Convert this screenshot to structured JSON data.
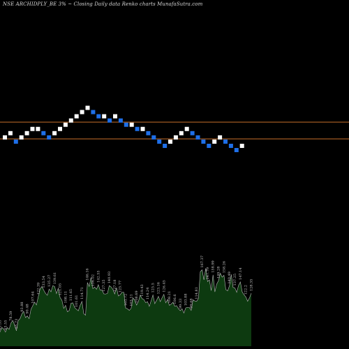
{
  "title": "NSE ARCHIDPLY_BE 3% ~  Closing Daily data  Renko  charts MunafaSutra.com",
  "colors": {
    "background": "#000000",
    "up_brick": "#ffffff",
    "down_brick": "#1e6fe8",
    "level_line": "#c8702a",
    "volume_fill": "#0d3a10",
    "volume_line": "#b8b8b8",
    "volume_label": "#c8c8c8"
  },
  "chart_data": {
    "type": "renko",
    "bricks": {
      "columns": 44,
      "levels": [
        3,
        4,
        2,
        3,
        4,
        5,
        5,
        4,
        3,
        4,
        5,
        6,
        7,
        8,
        9,
        10,
        9,
        8,
        8,
        7,
        8,
        7,
        6,
        6,
        5,
        5,
        4,
        3,
        2,
        1,
        2,
        3,
        4,
        5,
        4,
        3,
        2,
        1,
        2,
        3,
        2,
        1,
        0,
        1
      ],
      "directions": [
        "up",
        "up",
        "down",
        "up",
        "up",
        "up",
        "up",
        "down",
        "down",
        "up",
        "up",
        "up",
        "up",
        "up",
        "up",
        "up",
        "down",
        "down",
        "up",
        "down",
        "up",
        "down",
        "down",
        "up",
        "down",
        "up",
        "down",
        "down",
        "down",
        "down",
        "up",
        "up",
        "up",
        "up",
        "down",
        "down",
        "down",
        "down",
        "up",
        "up",
        "down",
        "down",
        "down",
        "up"
      ]
    },
    "levels": [
      "upper",
      "lower"
    ],
    "volume": {
      "values": [
        63.55,
        71.29,
        68.65,
        63.55,
        70.96,
        68.14,
        78.59,
        82.86,
        75.81,
        65.73,
        82.87,
        85.94,
        93.88,
        98.12,
        87.79,
        90.48,
        85.94,
        101.58,
        107.64,
        113.51,
        108.82,
        122.39,
        135.22,
        139.59,
        133.54,
        128.06,
        124.85,
        135.27,
        130.77,
        140.88,
        139.61,
        127.75,
        136.64,
        121.05,
        116.57,
        103.12,
        108.11,
        97.47,
        99.47,
        111.65,
        112.34,
        104.55,
        101.61,
        99.1,
        108.05,
        114.71,
        94.14,
        91.77,
        146.16,
        139.61,
        154.54,
        136.02,
        138.52,
        134.94,
        142.55,
        133.45,
        133.8,
        127.35,
        126.99,
        128.09,
        140.93,
        138.78,
        134.7,
        127.18,
        137.6,
        123.79,
        125.77,
        129.82,
        129.82,
        103.72,
        102.38,
        99.9,
        103.11,
        120.53,
        116.92,
        108.69,
        114.33,
        125.25,
        119.43,
        117.85,
        112.61,
        114.24,
        106.45,
        115.86,
        125.5,
        110.97,
        116.58,
        123.16,
        114.35,
        120.78,
        126.45,
        112.36,
        117.76,
        108.21,
        110.17,
        113.23,
        106.6,
        107.68,
        102.47,
        99.33,
        102.42,
        95.34,
        103.88,
        104.88,
        104.34,
        99.68,
        117.33,
        115.43,
        114.81,
        119.68,
        164.22,
        167.37,
        150.67,
        169.84,
        147.79,
        150.42,
        132.64,
        158.99,
        130.54,
        143.47,
        149.28,
        161.77,
        155.07,
        158.26,
        134.44,
        132.37,
        140.49,
        159.7,
        138.1,
        137.25,
        129.79,
        141.31,
        147.14,
        130.55,
        125.75,
        122.2,
        114.9,
        120.53,
        128.35
      ],
      "labels": [
        "63.55",
        "71.29",
        "68.65",
        "63.55",
        "70.96",
        "68.14",
        "78.59",
        "82.86",
        "75.81",
        "65.73",
        "82.87",
        "85.94",
        "93.88",
        "98.12",
        "87.79",
        "90.48",
        "85.94",
        "101.58",
        "107.64",
        "113.51",
        "108.82",
        "122.39",
        "135.22",
        "139.59",
        "133.54",
        "128.06",
        "124.85",
        "135.27",
        "130.77",
        "140.88",
        "139.61",
        "127.75",
        "136.64",
        "121.05",
        "116.57",
        "103.12",
        "108.11",
        "97.47",
        "99.47",
        "111.65",
        "112.34",
        "104.55",
        "101.61",
        "99.1",
        "108.05",
        "114.71",
        "94.14",
        "91.77",
        "146.16",
        "139.61",
        "154.54",
        "136.02",
        "138.52",
        "134.94",
        "142.55",
        "133.45",
        "133.8",
        "127.35",
        "126.99",
        "128.09",
        "140.93",
        "138.78",
        "134.7",
        "127.18",
        "137.6",
        "123.79",
        "125.77",
        "129.82",
        "129.82",
        "103.72",
        "102.38",
        "99.9",
        "103.11",
        "120.53",
        "116.92",
        "108.69",
        "114.33",
        "125.25",
        "119.43",
        "117.85",
        "112.61",
        "114.24",
        "106.45",
        "115.86",
        "125.5",
        "110.97",
        "116.58",
        "123.16",
        "114.35",
        "120.78",
        "126.45",
        "112.36",
        "117.76",
        "108.21",
        "110.17",
        "113.23",
        "106.6",
        "107.68",
        "102.47",
        "99.33",
        "102.42",
        "95.34",
        "103.88",
        "104.88",
        "104.34",
        "99.68",
        "117.33",
        "115.43",
        "114.81",
        "119.68",
        "164.22",
        "167.37",
        "150.67",
        "169.84",
        "147.79",
        "150.42",
        "132.64",
        "158.99",
        "130.54",
        "143.47",
        "149.28",
        "161.77",
        "155.07",
        "158.26",
        "134.44",
        "132.37",
        "140.49",
        "159.7",
        "138.1",
        "137.25",
        "129.79",
        "141.31",
        "147.14",
        "130.55",
        "125.75",
        "122.2",
        "114.9",
        "120.53",
        "128.35"
      ],
      "label_every": 3
    }
  }
}
